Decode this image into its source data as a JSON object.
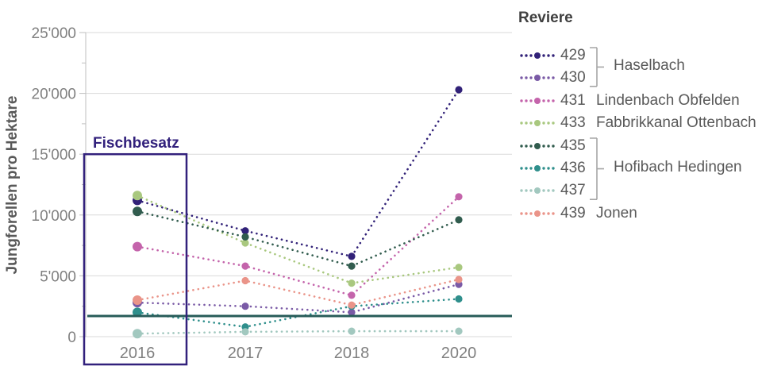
{
  "chart_data": {
    "type": "line",
    "title": "",
    "ylabel": "Jungforellen pro Hektare",
    "xlabel": "",
    "x_categories": [
      "2016",
      "2017",
      "2018",
      "2020"
    ],
    "y_ticks": [
      "0",
      "5'000",
      "10'000",
      "15'000",
      "20'000",
      "25'000"
    ],
    "ylim": [
      0,
      25000
    ],
    "grid": "horizontal",
    "line_style": "dotted",
    "legend_position": "right",
    "series": [
      {
        "id": "429",
        "water": "Haselbach",
        "color": "#312178",
        "values": [
          11200,
          8700,
          6600,
          20300
        ]
      },
      {
        "id": "430",
        "water": "Haselbach",
        "color": "#7a5aa6",
        "values": [
          2800,
          2500,
          2000,
          4300
        ]
      },
      {
        "id": "431",
        "water": "Lindenbach Obfelden",
        "color": "#c464ab",
        "values": [
          7400,
          5800,
          3400,
          11500
        ]
      },
      {
        "id": "433",
        "water": "Fabbrikkanal Ottenbach",
        "color": "#a9c87f",
        "values": [
          11600,
          7700,
          4400,
          5700
        ]
      },
      {
        "id": "435",
        "water": "Hofibach Hedingen",
        "color": "#315c4e",
        "values": [
          10300,
          8200,
          5800,
          9600
        ]
      },
      {
        "id": "436",
        "water": "Hofibach Hedingen",
        "color": "#2f8f8c",
        "values": [
          2000,
          800,
          2500,
          3100
        ]
      },
      {
        "id": "437",
        "water": "Hofibach Hedingen",
        "color": "#a2c8bf",
        "values": [
          250,
          400,
          450,
          450
        ]
      },
      {
        "id": "439",
        "water": "Jonen",
        "color": "#ea9489",
        "values": [
          3000,
          4600,
          2600,
          4700
        ]
      }
    ],
    "reference_line": {
      "value": 1700,
      "color": "#275b58"
    },
    "annotation_box": {
      "label": "Fischbesatz",
      "x_category": "2016",
      "y_top": 15000,
      "color": "#32217c"
    },
    "colors": {
      "gridline": "#d9d9d9",
      "axis_line": "#bfbfbf",
      "tick_label": "#808080",
      "axis_title": "#595959",
      "bracket": "#a6a6a6"
    }
  },
  "legend": {
    "title": "Reviere",
    "entries": [
      {
        "id": "429",
        "name": ""
      },
      {
        "id": "430",
        "name": ""
      },
      {
        "id": "431",
        "name": "Lindenbach Obfelden"
      },
      {
        "id": "433",
        "name": "Fabbrikkanal Ottenbach"
      },
      {
        "id": "435",
        "name": ""
      },
      {
        "id": "436",
        "name": ""
      },
      {
        "id": "437",
        "name": ""
      },
      {
        "id": "439",
        "name": "Jonen"
      }
    ],
    "groups": [
      {
        "label": "Haselbach",
        "start": 0,
        "end": 1
      },
      {
        "label": "Hofibach Hedingen",
        "start": 4,
        "end": 6
      }
    ]
  }
}
